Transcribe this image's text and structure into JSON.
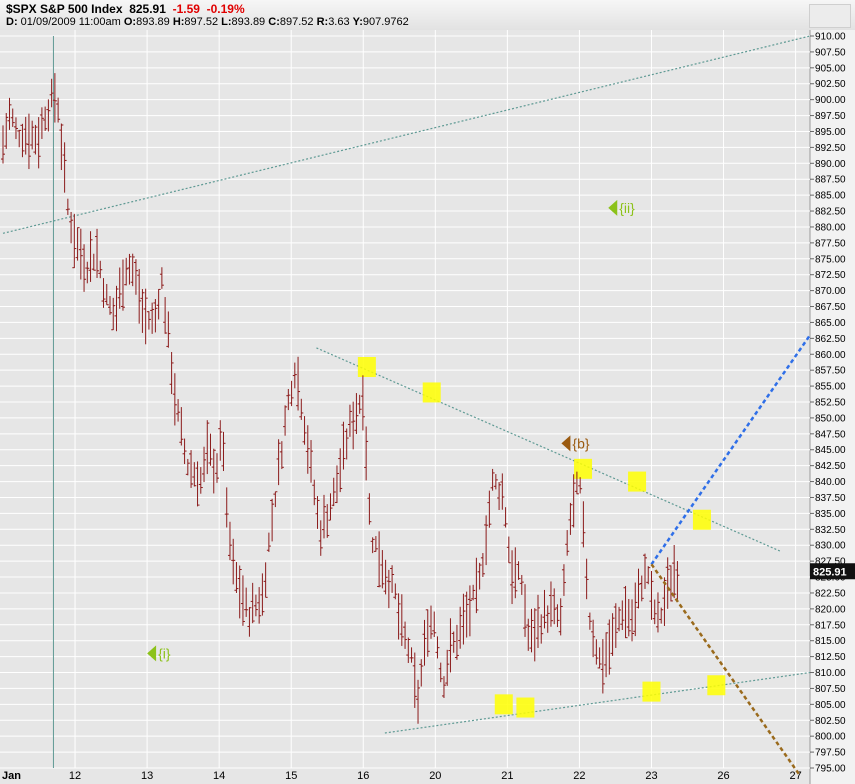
{
  "header": {
    "symbol": "$SPX",
    "name": "S&P 500 Index",
    "last": "825.91",
    "change": "-1.59",
    "change_pct": "-0.19%",
    "bar_date": "01/09/2009",
    "bar_time": "11:00am",
    "label_d": "D:",
    "label_o": "O:",
    "open": "893.89",
    "label_h": "H:",
    "high": "897.52",
    "label_l": "L:",
    "low": "893.89",
    "label_c": "C:",
    "close": "897.52",
    "label_r": "R:",
    "range": "3.63",
    "label_y": "Y:",
    "y_value": "907.9762"
  },
  "colors": {
    "bars": "#8b1a1a",
    "grid": "#ffffff",
    "background": "#e6e6e6",
    "channel_line": "#5f9a94",
    "blue_projection": "#2f6fe8",
    "brown_projection": "#9a6a1c",
    "highlight": "#ffff00",
    "wave_green": "#8cc21a",
    "wave_brown": "#9a5a10",
    "price_tag_bg": "#111111"
  },
  "annotations": {
    "wave_i": "{i}",
    "wave_ii": "{ii}",
    "wave_b": "{b}"
  },
  "chart_data": {
    "type": "ohlc",
    "title": "$SPX S&P 500 Index",
    "last_price_label": "825.91",
    "x_ticks": [
      "Jan",
      "12",
      "13",
      "14",
      "15",
      "16",
      "20",
      "21",
      "22",
      "23",
      "26",
      "27"
    ],
    "y_ticks": [
      "795.00",
      "797.50",
      "800.00",
      "802.50",
      "805.00",
      "807.50",
      "810.00",
      "812.50",
      "815.00",
      "817.50",
      "820.00",
      "822.50",
      "825.00",
      "827.50",
      "830.00",
      "832.50",
      "835.00",
      "837.50",
      "840.00",
      "842.50",
      "845.00",
      "847.50",
      "850.00",
      "852.50",
      "855.00",
      "857.50",
      "860.00",
      "862.50",
      "865.00",
      "867.50",
      "870.00",
      "872.50",
      "875.00",
      "877.50",
      "880.00",
      "882.50",
      "885.00",
      "887.50",
      "890.00",
      "892.50",
      "895.00",
      "897.50",
      "900.00",
      "902.50",
      "905.00",
      "907.50",
      "910.00"
    ],
    "ylim": [
      795,
      910
    ],
    "xlim": [
      0,
      11.2
    ],
    "grid": true,
    "path_x": [
      0,
      0.1,
      0.18,
      0.5,
      0.58,
      0.75,
      0.82,
      0.9,
      1.0,
      1.15,
      1.3,
      1.45,
      1.55,
      1.7,
      1.82,
      1.95,
      2.1,
      2.2,
      2.3,
      2.4,
      2.55,
      2.75,
      2.85,
      2.95,
      3.0,
      3.05,
      3.1,
      3.2,
      3.4,
      3.6,
      3.8,
      3.95,
      4.05,
      4.15,
      4.2,
      4.4,
      4.6,
      4.8,
      5.0,
      5.1,
      5.3,
      5.45,
      5.5,
      5.65,
      5.75,
      5.9,
      6.0,
      6.1,
      6.2,
      6.4,
      6.6,
      6.8,
      6.95,
      7.05,
      7.2,
      7.3,
      7.45,
      7.6,
      7.75,
      7.85,
      8.0,
      8.15,
      8.3,
      8.45,
      8.6,
      8.75,
      8.85,
      8.95,
      9.0,
      9.1,
      9.2,
      9.3,
      9.4
    ],
    "path_y": [
      893,
      898,
      895,
      894,
      898,
      901,
      892,
      883,
      878,
      874,
      876,
      868,
      866,
      874,
      873,
      866,
      865,
      872,
      862,
      852,
      843,
      840,
      845,
      842,
      844,
      848,
      835,
      826,
      819,
      822,
      840,
      852,
      858,
      852,
      848,
      832,
      838,
      848,
      854,
      832,
      826,
      822,
      818,
      813,
      805,
      818,
      818,
      808,
      813,
      818,
      823,
      840,
      838,
      826,
      824,
      815,
      818,
      820,
      818,
      833,
      840,
      818,
      811,
      815,
      820,
      818,
      824,
      826,
      821,
      818,
      822,
      826,
      825.91
    ],
    "channel_lines": [
      {
        "x": [
          0,
          11.2
        ],
        "y": [
          879,
          910
        ]
      },
      {
        "x": [
          4.35,
          10.8
        ],
        "y": [
          861,
          829
        ]
      },
      {
        "x": [
          5.3,
          11.2
        ],
        "y": [
          800.5,
          810
        ]
      }
    ],
    "projections": [
      {
        "color": "blue",
        "x": [
          9.0,
          11.2
        ],
        "y": [
          827,
          863
        ]
      },
      {
        "color": "brown",
        "x": [
          9.0,
          11.05
        ],
        "y": [
          827,
          794
        ]
      }
    ],
    "highlight_points": [
      {
        "x": 5.05,
        "y": 858
      },
      {
        "x": 5.95,
        "y": 854
      },
      {
        "x": 6.95,
        "y": 805
      },
      {
        "x": 7.25,
        "y": 804.5
      },
      {
        "x": 8.05,
        "y": 842
      },
      {
        "x": 8.8,
        "y": 840
      },
      {
        "x": 9.7,
        "y": 834
      },
      {
        "x": 9.0,
        "y": 807
      },
      {
        "x": 9.9,
        "y": 808
      }
    ],
    "wave_labels": [
      {
        "key": "wave_i",
        "x": 2.0,
        "y": 813,
        "color": "green"
      },
      {
        "key": "wave_ii",
        "x": 8.4,
        "y": 883,
        "color": "green"
      },
      {
        "key": "wave_b",
        "x": 7.75,
        "y": 846,
        "color": "brown"
      }
    ],
    "vertical_marker_x": 0.7
  }
}
